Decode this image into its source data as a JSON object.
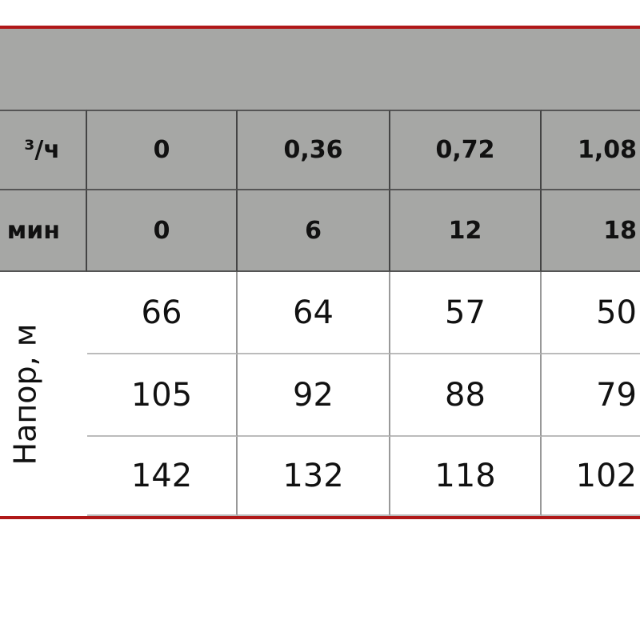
{
  "table": {
    "header_rows": [
      {
        "label": "³/ч",
        "values": [
          "0",
          "0,36",
          "0,72",
          "1,08"
        ]
      },
      {
        "label": "мин",
        "values": [
          "0",
          "6",
          "12",
          "18"
        ]
      }
    ],
    "row_group_label": "Напор, м",
    "rows": [
      [
        "66",
        "64",
        "57",
        "50"
      ],
      [
        "105",
        "92",
        "88",
        "79"
      ],
      [
        "142",
        "132",
        "118",
        "102"
      ]
    ]
  },
  "colors": {
    "accent_border": "#b01818",
    "header_bg": "#a6a7a5"
  }
}
